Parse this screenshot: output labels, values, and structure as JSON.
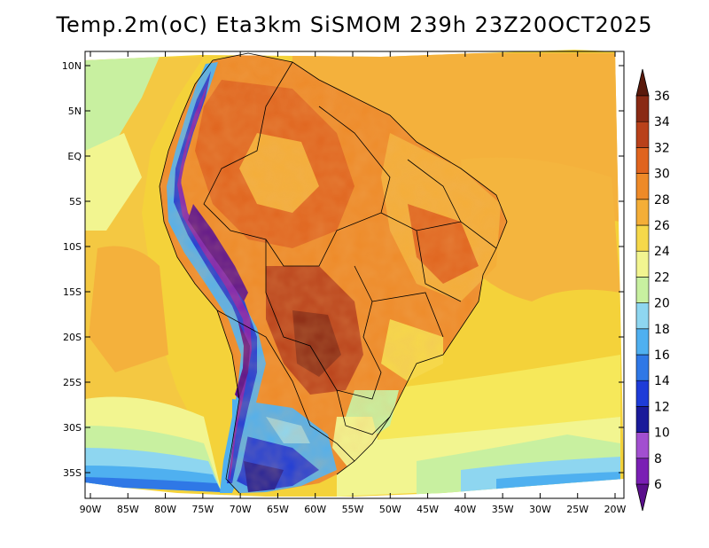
{
  "title": "Temp.2m(oC) Eta3km SiSMOM 239h 23Z20OCT2025",
  "map": {
    "lat_ticks": [
      "10N",
      "5N",
      "EQ",
      "5S",
      "10S",
      "15S",
      "20S",
      "25S",
      "30S",
      "35S"
    ],
    "lon_ticks": [
      "90W",
      "85W",
      "80W",
      "75W",
      "70W",
      "65W",
      "60W",
      "55W",
      "50W",
      "45W",
      "40W",
      "35W",
      "30W",
      "25W",
      "20W"
    ]
  },
  "colorbar": {
    "labels": [
      "6",
      "8",
      "10",
      "12",
      "14",
      "16",
      "18",
      "20",
      "22",
      "24",
      "26",
      "28",
      "30",
      "32",
      "34",
      "36"
    ],
    "colors": [
      "#5a0f8c",
      "#7a1fb4",
      "#a24fd0",
      "#1a1a9a",
      "#1e3cd8",
      "#2f78e6",
      "#4fb0f0",
      "#8ed6f0",
      "#c8f0a0",
      "#f2f590",
      "#f6d84a",
      "#f4ae38",
      "#ee8a28",
      "#e0641e",
      "#b9411a",
      "#8a2a14",
      "#5a1a0c"
    ]
  }
}
